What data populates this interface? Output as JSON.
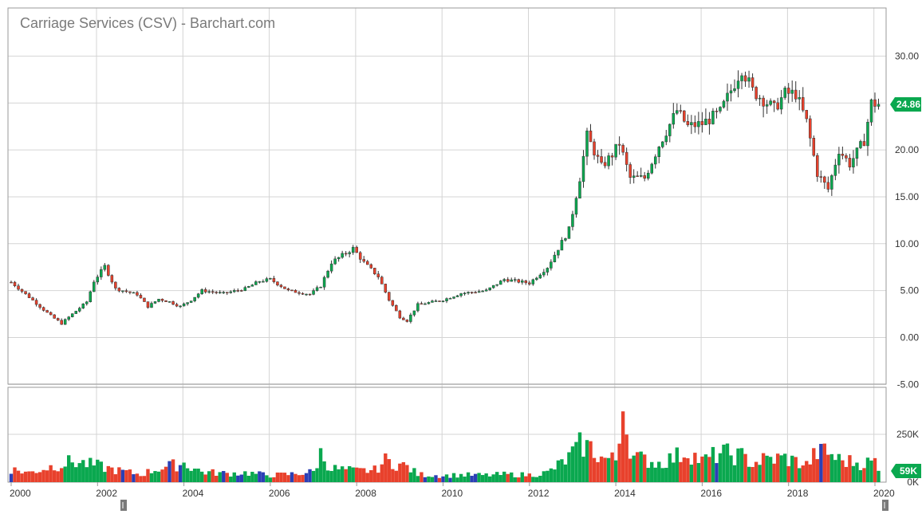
{
  "title": "Carriage Services (CSV) - Barchart.com",
  "colors": {
    "up": "#0aa84f",
    "down": "#e8412c",
    "neutral": "#2b3fb5",
    "grid": "#d4d4d4",
    "axis": "#9a9a9a",
    "text": "#333333",
    "title": "#7a7a7a"
  },
  "price_badge": "24.86",
  "volume_badge": "59K",
  "chart_data": [
    {
      "type": "candlestick",
      "subtype": "monthly OHLC",
      "title": "Carriage Services (CSV) - Barchart.com",
      "xlabel": "",
      "ylabel": "",
      "ylim": [
        -5,
        33
      ],
      "yticks": [
        "30.00",
        "25.00",
        "20.00",
        "15.00",
        "10.00",
        "5.00",
        "0.00",
        "-5.00"
      ],
      "xticks": [
        "2000",
        "2002",
        "2004",
        "2006",
        "2008",
        "2010",
        "2012",
        "2014",
        "2016",
        "2018",
        "2020"
      ],
      "last_price": 24.86,
      "x_range": [
        "2000-01",
        "2020-02"
      ],
      "series": [
        {
          "name": "",
          "points": [
            [
              "2000-01",
              5.9
            ],
            [
              "2000-06",
              4.3
            ],
            [
              "2000-12",
              2.3
            ],
            [
              "2001-03",
              1.5
            ],
            [
              "2001-06",
              2.5
            ],
            [
              "2001-10",
              3.8
            ],
            [
              "2001-12",
              6.0
            ],
            [
              "2002-03",
              7.6
            ],
            [
              "2002-06",
              5.2
            ],
            [
              "2002-12",
              4.6
            ],
            [
              "2003-03",
              3.3
            ],
            [
              "2003-06",
              4.1
            ],
            [
              "2003-09",
              3.8
            ],
            [
              "2003-12",
              3.3
            ],
            [
              "2004-03",
              4.0
            ],
            [
              "2004-06",
              5.0
            ],
            [
              "2004-12",
              4.7
            ],
            [
              "2005-06",
              5.2
            ],
            [
              "2005-10",
              6.0
            ],
            [
              "2006-01",
              6.2
            ],
            [
              "2006-06",
              5.0
            ],
            [
              "2006-12",
              4.6
            ],
            [
              "2007-03",
              5.5
            ],
            [
              "2007-06",
              8.0
            ],
            [
              "2007-12",
              9.5
            ],
            [
              "2008-03",
              8.0
            ],
            [
              "2008-07",
              6.5
            ],
            [
              "2008-10",
              4.0
            ],
            [
              "2009-01",
              2.2
            ],
            [
              "2009-03",
              1.8
            ],
            [
              "2009-06",
              3.5
            ],
            [
              "2010-01",
              4.0
            ],
            [
              "2010-06",
              4.7
            ],
            [
              "2011-01",
              5.0
            ],
            [
              "2011-06",
              6.2
            ],
            [
              "2012-01",
              5.8
            ],
            [
              "2012-06",
              7.5
            ],
            [
              "2012-12",
              11.5
            ],
            [
              "2013-03",
              17.0
            ],
            [
              "2013-05",
              21.5
            ],
            [
              "2013-09",
              18.2
            ],
            [
              "2013-12",
              19.5
            ],
            [
              "2014-02",
              20.7
            ],
            [
              "2014-05",
              17.0
            ],
            [
              "2014-09",
              17.0
            ],
            [
              "2015-01",
              20.5
            ],
            [
              "2015-06",
              24.2
            ],
            [
              "2015-09",
              22.5
            ],
            [
              "2016-01",
              22.8
            ],
            [
              "2016-06",
              24.0
            ],
            [
              "2016-12",
              28.7
            ],
            [
              "2017-03",
              26.3
            ],
            [
              "2017-09",
              24.4
            ],
            [
              "2017-12",
              26.0
            ],
            [
              "2018-03",
              26.0
            ],
            [
              "2018-06",
              23.0
            ],
            [
              "2018-09",
              17.5
            ],
            [
              "2018-12",
              15.8
            ],
            [
              "2019-03",
              20.0
            ],
            [
              "2019-06",
              18.5
            ],
            [
              "2019-10",
              21.0
            ],
            [
              "2019-12",
              25.0
            ],
            [
              "2020-02",
              24.86
            ]
          ]
        }
      ]
    },
    {
      "type": "bar",
      "subtype": "volume",
      "ylim": [
        0,
        380000
      ],
      "yticks": [
        "250K",
        "0K"
      ],
      "last_value": "59K",
      "series": [
        {
          "name": "",
          "points": [
            [
              "2000-01",
              75000
            ],
            [
              "2000-06",
              55000
            ],
            [
              "2000-12",
              90000
            ],
            [
              "2001-06",
              120000
            ],
            [
              "2002-01",
              95000
            ],
            [
              "2002-06",
              70000
            ],
            [
              "2003-01",
              45000
            ],
            [
              "2003-06",
              80000
            ],
            [
              "2004-01",
              110000
            ],
            [
              "2004-06",
              60000
            ],
            [
              "2005-01",
              50000
            ],
            [
              "2005-06",
              55000
            ],
            [
              "2006-01",
              40000
            ],
            [
              "2006-06",
              45000
            ],
            [
              "2007-01",
              60000
            ],
            [
              "2007-03",
              165000
            ],
            [
              "2007-06",
              80000
            ],
            [
              "2008-01",
              65000
            ],
            [
              "2008-06",
              70000
            ],
            [
              "2008-09",
              125000
            ],
            [
              "2009-03",
              90000
            ],
            [
              "2009-06",
              45000
            ],
            [
              "2010-01",
              38000
            ],
            [
              "2010-06",
              42000
            ],
            [
              "2011-01",
              40000
            ],
            [
              "2011-06",
              45000
            ],
            [
              "2012-01",
              42000
            ],
            [
              "2012-06",
              55000
            ],
            [
              "2012-12",
              140000
            ],
            [
              "2013-02",
              210000
            ],
            [
              "2013-05",
              220000
            ],
            [
              "2013-09",
              140000
            ],
            [
              "2014-01",
              130000
            ],
            [
              "2014-03",
              370000
            ],
            [
              "2014-06",
              145000
            ],
            [
              "2015-01",
              110000
            ],
            [
              "2015-06",
              150000
            ],
            [
              "2015-09",
              180000
            ],
            [
              "2016-01",
              120000
            ],
            [
              "2016-06",
              170000
            ],
            [
              "2016-12",
              150000
            ],
            [
              "2017-03",
              110000
            ],
            [
              "2017-06",
              130000
            ],
            [
              "2017-12",
              140000
            ],
            [
              "2018-03",
              120000
            ],
            [
              "2018-06",
              100000
            ],
            [
              "2018-10",
              200000
            ],
            [
              "2019-03",
              130000
            ],
            [
              "2019-06",
              120000
            ],
            [
              "2019-10",
              110000
            ],
            [
              "2020-01",
              120000
            ],
            [
              "2020-02",
              59000
            ]
          ]
        }
      ]
    }
  ]
}
